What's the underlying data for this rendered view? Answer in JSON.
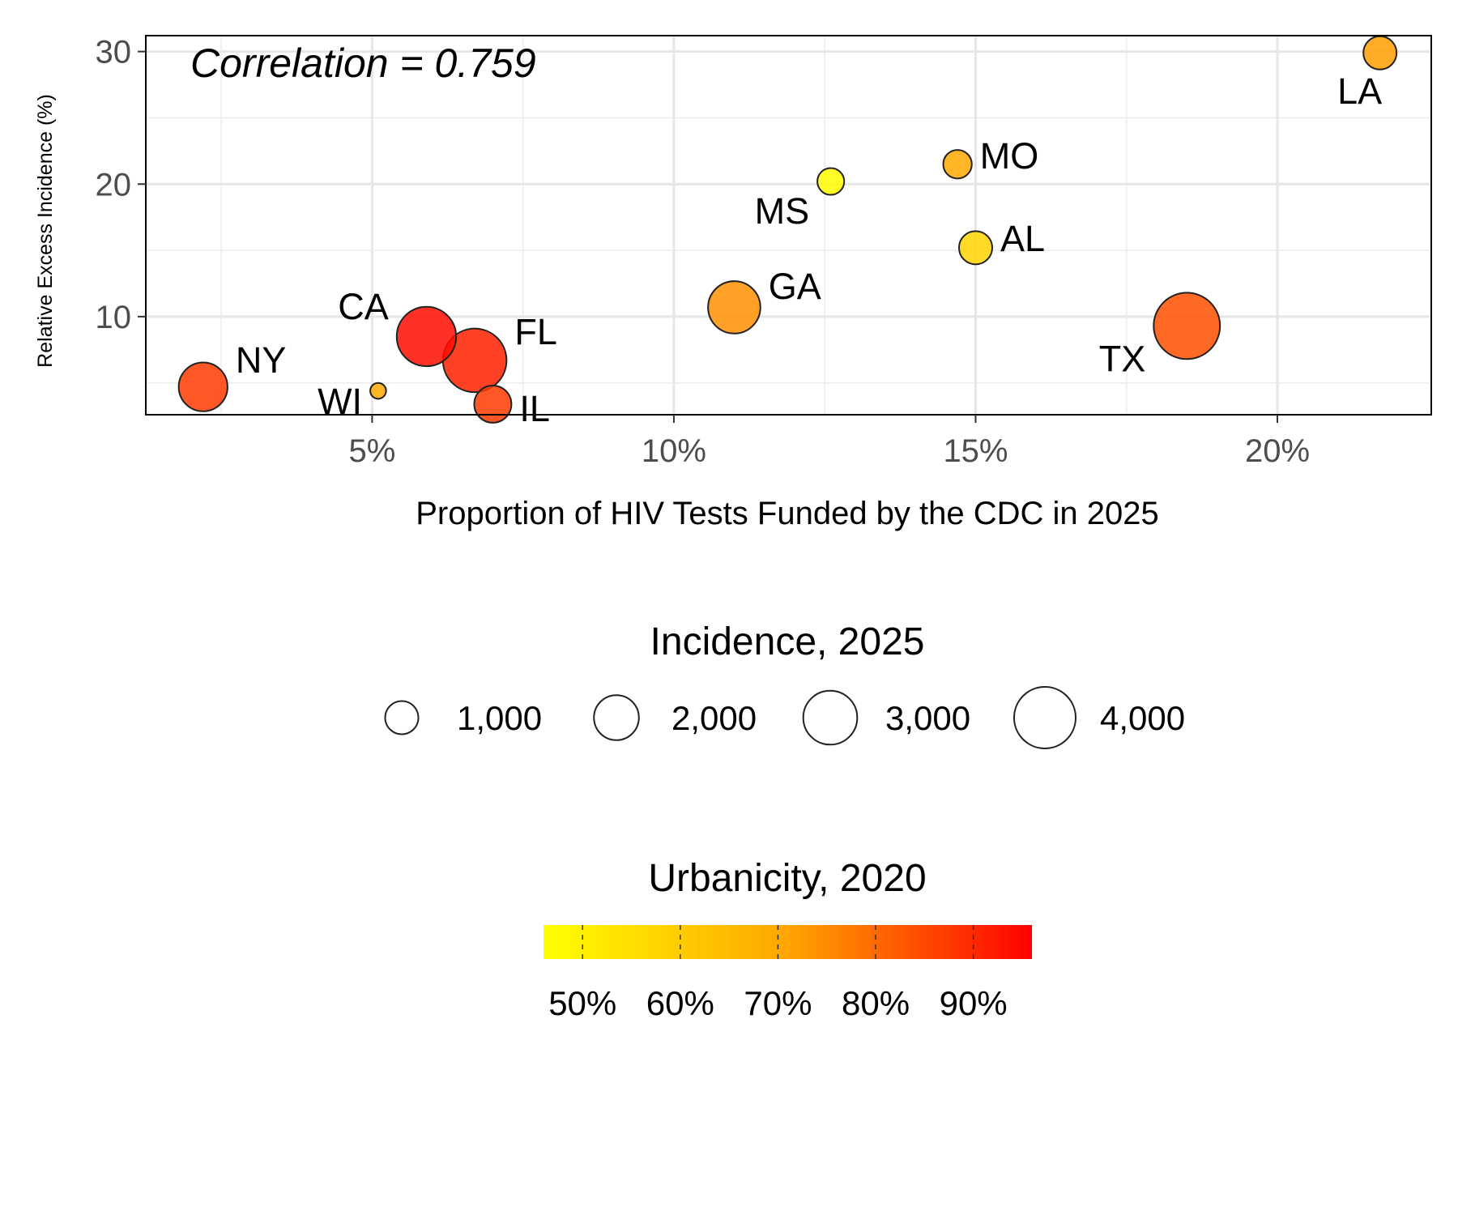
{
  "chart_data": {
    "type": "scatter",
    "annotation": "Correlation = 0.759",
    "xlabel": "Proportion of HIV Tests Funded by the CDC in 2025",
    "ylabel": "Relative Excess Incidence (%)",
    "xlim": [
      0.0125,
      0.2255
    ],
    "ylim": [
      2.6,
      31.2
    ],
    "x_ticks": [
      0.05,
      0.1,
      0.15,
      0.2
    ],
    "x_tick_labels": [
      "5%",
      "10%",
      "15%",
      "20%"
    ],
    "y_ticks": [
      10,
      20,
      30
    ],
    "y_tick_labels": [
      "10",
      "20",
      "30"
    ],
    "grid": true,
    "points": [
      {
        "label": "NY",
        "x": 0.022,
        "y": 4.7,
        "incidence": 2400,
        "urbanicity": 0.87
      },
      {
        "label": "WI",
        "x": 0.051,
        "y": 4.4,
        "incidence": 150,
        "urbanicity": 0.7
      },
      {
        "label": "CA",
        "x": 0.059,
        "y": 8.5,
        "incidence": 3700,
        "urbanicity": 0.94
      },
      {
        "label": "FL",
        "x": 0.067,
        "y": 6.7,
        "incidence": 4300,
        "urbanicity": 0.91
      },
      {
        "label": "IL",
        "x": 0.07,
        "y": 3.4,
        "incidence": 1300,
        "urbanicity": 0.87
      },
      {
        "label": "GA",
        "x": 0.11,
        "y": 10.7,
        "incidence": 2800,
        "urbanicity": 0.74
      },
      {
        "label": "MS",
        "x": 0.126,
        "y": 20.2,
        "incidence": 600,
        "urbanicity": 0.47
      },
      {
        "label": "MO",
        "x": 0.147,
        "y": 21.5,
        "incidence": 700,
        "urbanicity": 0.7
      },
      {
        "label": "AL",
        "x": 0.15,
        "y": 15.2,
        "incidence": 1000,
        "urbanicity": 0.58
      },
      {
        "label": "TX",
        "x": 0.185,
        "y": 9.3,
        "incidence": 4700,
        "urbanicity": 0.84
      },
      {
        "label": "LA",
        "x": 0.217,
        "y": 29.9,
        "incidence": 1000,
        "urbanicity": 0.72
      }
    ],
    "size_legend": {
      "title": "Incidence, 2025",
      "values": [
        1000,
        2000,
        3000,
        4000
      ],
      "labels": [
        "1,000",
        "2,000",
        "3,000",
        "4,000"
      ]
    },
    "color_legend": {
      "title": "Urbanicity, 2020",
      "range": [
        0.46,
        0.96
      ],
      "ticks": [
        0.5,
        0.6,
        0.7,
        0.8,
        0.9
      ],
      "tick_labels": [
        "50%",
        "60%",
        "70%",
        "80%",
        "90%"
      ],
      "low_color": "#FFFF00",
      "high_color": "#FF0000"
    }
  }
}
